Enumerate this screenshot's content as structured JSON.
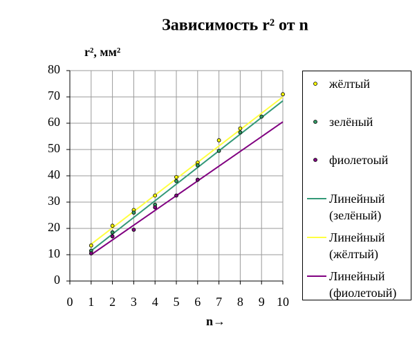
{
  "chart_data": {
    "type": "scatter",
    "title": "Зависимость r² от n",
    "ylabel": "r², мм²",
    "xlabel": "n→",
    "xlim": [
      0,
      10
    ],
    "xticks": [
      0,
      1,
      2,
      3,
      4,
      5,
      6,
      7,
      8,
      9,
      10
    ],
    "ylim": [
      0,
      80
    ],
    "yticks": [
      0,
      10,
      20,
      30,
      40,
      50,
      60,
      70,
      80
    ],
    "grid": true,
    "x": [
      1,
      2,
      3,
      4,
      5,
      6,
      7,
      8,
      9,
      10
    ],
    "series": [
      {
        "name": "жёлтый",
        "color": "#ffff00",
        "values": [
          13.5,
          21,
          27,
          32.5,
          39.5,
          45,
          53.5,
          58,
          null,
          71
        ]
      },
      {
        "name": "зелёный",
        "color": "#339966",
        "values": [
          11.5,
          18.5,
          26,
          29,
          38,
          44,
          49.5,
          56.5,
          62.5,
          null
        ]
      },
      {
        "name": "фиолетоый",
        "color": "#800080",
        "values": [
          10.5,
          17,
          19.5,
          28,
          32.5,
          38.5,
          null,
          null,
          null,
          null
        ]
      }
    ],
    "trendlines": [
      {
        "name": "Линейный (зелёный)",
        "color": "#339977",
        "x": [
          1,
          10
        ],
        "values": [
          11.5,
          68.5
        ]
      },
      {
        "name": "Линейный (жёлтый)",
        "color": "#ffff40",
        "x": [
          1,
          10
        ],
        "values": [
          14,
          70
        ]
      },
      {
        "name": "Линейный (фиолетоый)",
        "color": "#800080",
        "x": [
          1,
          10
        ],
        "values": [
          10,
          60.5
        ]
      }
    ]
  }
}
